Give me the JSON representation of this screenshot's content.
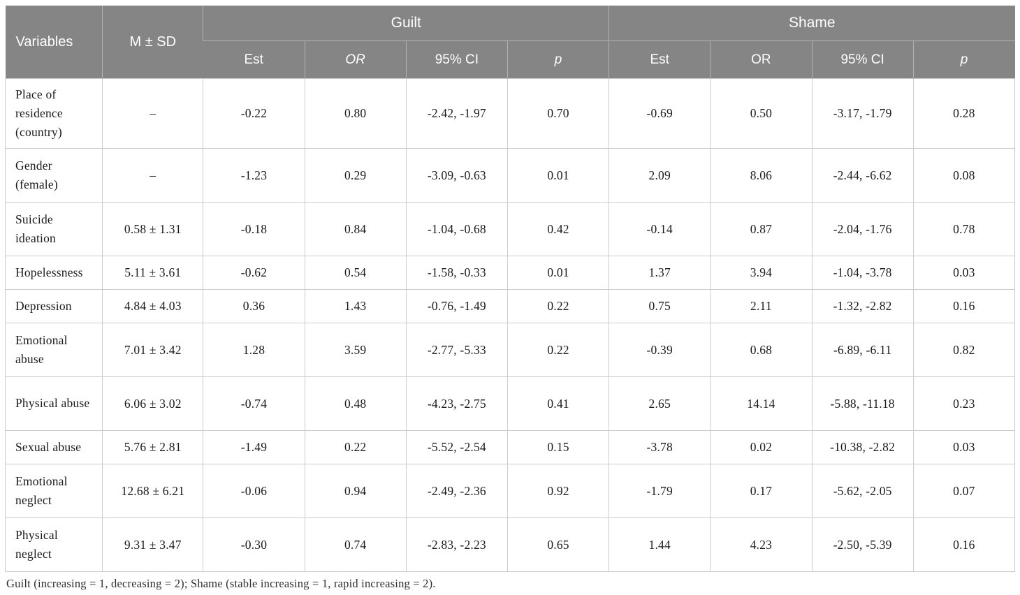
{
  "table": {
    "headers": {
      "variables": "Variables",
      "msd": "M ± SD",
      "group_guilt": "Guilt",
      "group_shame": "Shame",
      "sub": [
        "Est",
        "OR",
        "95% CI",
        "p",
        "Est",
        "OR",
        "95% CI",
        "p"
      ]
    },
    "rows": [
      {
        "variable": "Place of residence (country)",
        "msd": "–",
        "guilt": [
          "-0.22",
          "0.80",
          "-2.42, -1.97",
          "0.70"
        ],
        "shame": [
          "-0.69",
          "0.50",
          "-3.17, -1.79",
          "0.28"
        ]
      },
      {
        "variable": "Gender (female)",
        "msd": "–",
        "guilt": [
          "-1.23",
          "0.29",
          "-3.09, -0.63",
          "0.01"
        ],
        "shame": [
          "2.09",
          "8.06",
          "-2.44, -6.62",
          "0.08"
        ]
      },
      {
        "variable": "Suicide ideation",
        "msd": "0.58 ± 1.31",
        "guilt": [
          "-0.18",
          "0.84",
          "-1.04, -0.68",
          "0.42"
        ],
        "shame": [
          "-0.14",
          "0.87",
          "-2.04, -1.76",
          "0.78"
        ]
      },
      {
        "variable": "Hopelessness",
        "msd": "5.11 ± 3.61",
        "guilt": [
          "-0.62",
          "0.54",
          "-1.58, -0.33",
          "0.01"
        ],
        "shame": [
          "1.37",
          "3.94",
          "-1.04, -3.78",
          "0.03"
        ]
      },
      {
        "variable": "Depression",
        "msd": "4.84 ± 4.03",
        "guilt": [
          "0.36",
          "1.43",
          "-0.76, -1.49",
          "0.22"
        ],
        "shame": [
          "0.75",
          "2.11",
          "-1.32, -2.82",
          "0.16"
        ]
      },
      {
        "variable": "Emotional abuse",
        "msd": "7.01 ± 3.42",
        "guilt": [
          "1.28",
          "3.59",
          "-2.77, -5.33",
          "0.22"
        ],
        "shame": [
          "-0.39",
          "0.68",
          "-6.89, -6.11",
          "0.82"
        ]
      },
      {
        "variable": "Physical abuse",
        "msd": "6.06 ± 3.02",
        "guilt": [
          "-0.74",
          "0.48",
          "-4.23, -2.75",
          "0.41"
        ],
        "shame": [
          "2.65",
          "14.14",
          "-5.88, -11.18",
          "0.23"
        ]
      },
      {
        "variable": "Sexual abuse",
        "msd": "5.76 ± 2.81",
        "guilt": [
          "-1.49",
          "0.22",
          "-5.52, -2.54",
          "0.15"
        ],
        "shame": [
          "-3.78",
          "0.02",
          "-10.38, -2.82",
          "0.03"
        ]
      },
      {
        "variable": "Emotional neglect",
        "msd": "12.68 ± 6.21",
        "guilt": [
          "-0.06",
          "0.94",
          "-2.49, -2.36",
          "0.92"
        ],
        "shame": [
          "-1.79",
          "0.17",
          "-5.62, -2.05",
          "0.07"
        ]
      },
      {
        "variable": "Physical neglect",
        "msd": "9.31 ± 3.47",
        "guilt": [
          "-0.30",
          "0.74",
          "-2.83, -2.23",
          "0.65"
        ],
        "shame": [
          "1.44",
          "4.23",
          "-2.50, -5.39",
          "0.16"
        ]
      }
    ],
    "footnote": "Guilt (increasing = 1, decreasing = 2); Shame (stable increasing = 1, rapid increasing = 2)."
  },
  "colors": {
    "header_bg": "#858585",
    "header_text": "#ffffff",
    "header_divider": "#b2b2b2",
    "body_border": "#cccccc",
    "body_text": "#1b1b1b"
  }
}
